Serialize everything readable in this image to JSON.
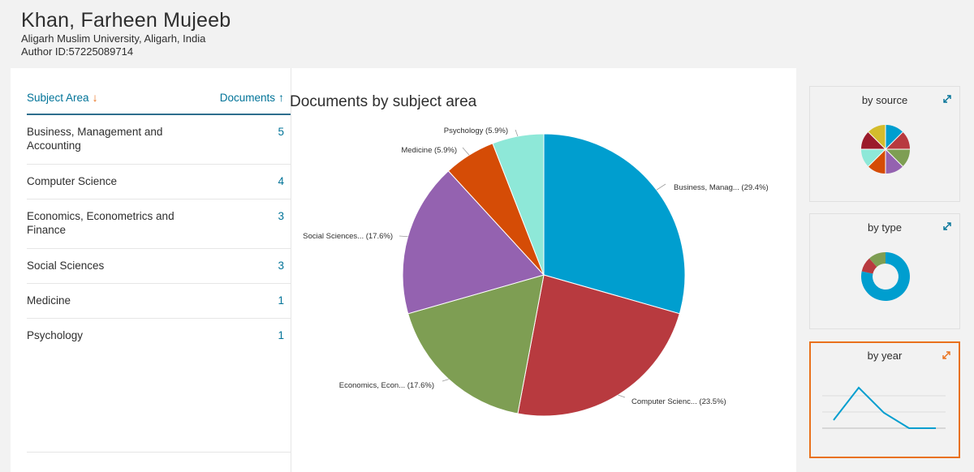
{
  "author": {
    "name": "Khan, Farheen Mujeeb",
    "affiliation": "Aligarh Muslim University, Aligarh, India",
    "author_id": "Author ID:57225089714"
  },
  "table": {
    "col_subject": "Subject Area",
    "col_documents": "Documents",
    "rows": [
      {
        "label": "Business, Management and Accounting",
        "count": "5"
      },
      {
        "label": "Computer Science",
        "count": "4"
      },
      {
        "label": "Economics, Econometrics and Finance",
        "count": "3"
      },
      {
        "label": "Social Sciences",
        "count": "3"
      },
      {
        "label": "Medicine",
        "count": "1"
      },
      {
        "label": "Psychology",
        "count": "1"
      }
    ]
  },
  "chart_data": {
    "type": "pie",
    "title": "Documents by subject area",
    "slices": [
      {
        "label": "Business, Manag... (29.4%)",
        "value": 29.4,
        "color": "#009ecf"
      },
      {
        "label": "Computer Scienc... (23.5%)",
        "value": 23.5,
        "color": "#b83a3f"
      },
      {
        "label": "Economics, Econ... (17.6%)",
        "value": 17.6,
        "color": "#7e9e53"
      },
      {
        "label": "Social Sciences... (17.6%)",
        "value": 17.6,
        "color": "#9462b0"
      },
      {
        "label": "Medicine (5.9%)",
        "value": 5.9,
        "color": "#d54c06"
      },
      {
        "label": "Psychology (5.9%)",
        "value": 5.9,
        "color": "#8ee8d8"
      }
    ]
  },
  "cards": {
    "by_source": "by source",
    "by_type": "by type",
    "by_year": "by year"
  },
  "colors": {
    "link": "#007398",
    "accent": "#e9711c"
  },
  "icons": {
    "sort_subject": "arrow-down-icon",
    "sort_documents": "arrow-up-icon",
    "expand": "expand-icon"
  }
}
